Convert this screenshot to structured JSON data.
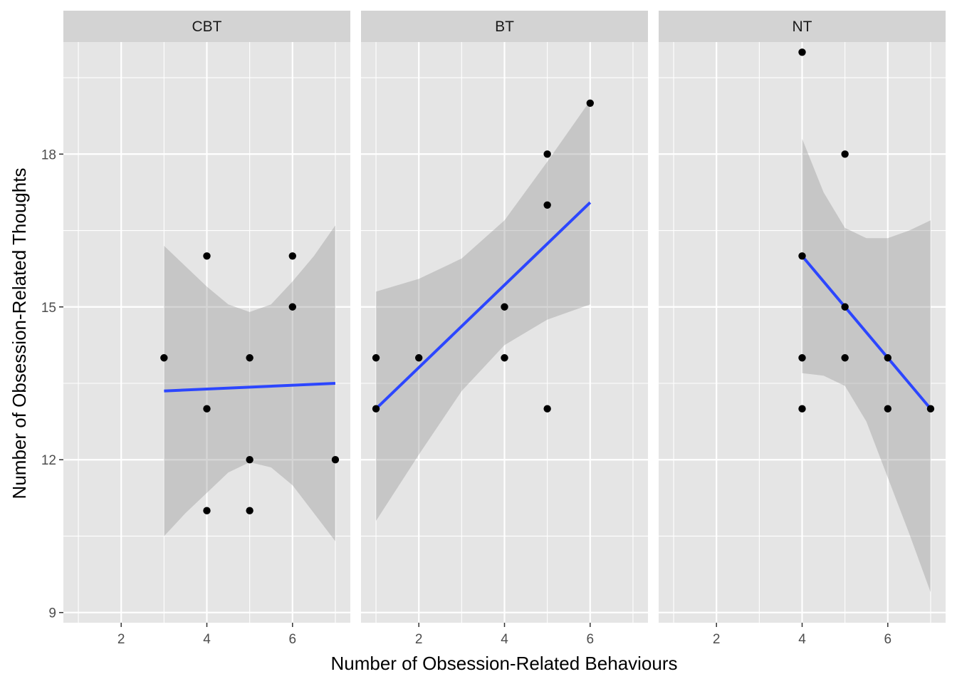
{
  "chart_data": {
    "type": "scatter",
    "xlabel": "Number of Obsession-Related Behaviours",
    "ylabel": "Number of Obsession-Related Thoughts",
    "xlim": [
      0.65,
      7.35
    ],
    "ylim": [
      8.8,
      20.2
    ],
    "x_ticks": [
      2,
      4,
      6
    ],
    "x_minor_ticks": [
      1,
      3,
      5,
      7
    ],
    "y_ticks": [
      9,
      12,
      15,
      18
    ],
    "y_minor_ticks": [
      10.5,
      13.5,
      16.5,
      19.5
    ],
    "grid": true,
    "colors": {
      "panel_bg": "#e5e5e5",
      "strip_bg": "#d3d3d3",
      "grid": "#ffffff",
      "points": "#000000",
      "fit_line": "#2c46ff",
      "ribbon": "#999999"
    },
    "panels": [
      {
        "label": "CBT",
        "points": [
          {
            "x": 3,
            "y": 14
          },
          {
            "x": 4,
            "y": 16
          },
          {
            "x": 4,
            "y": 13
          },
          {
            "x": 4,
            "y": 11
          },
          {
            "x": 5,
            "y": 14
          },
          {
            "x": 5,
            "y": 12
          },
          {
            "x": 5,
            "y": 11
          },
          {
            "x": 6,
            "y": 16
          },
          {
            "x": 6,
            "y": 15
          },
          {
            "x": 7,
            "y": 12
          }
        ],
        "fit": [
          {
            "x": 3,
            "y": 13.35
          },
          {
            "x": 7,
            "y": 13.5
          }
        ],
        "ribbon_upper": [
          {
            "x": 3,
            "y": 16.2
          },
          {
            "x": 3.5,
            "y": 15.8
          },
          {
            "x": 4,
            "y": 15.4
          },
          {
            "x": 4.5,
            "y": 15.05
          },
          {
            "x": 5,
            "y": 14.9
          },
          {
            "x": 5.5,
            "y": 15.05
          },
          {
            "x": 6,
            "y": 15.5
          },
          {
            "x": 6.5,
            "y": 16.0
          },
          {
            "x": 7,
            "y": 16.6
          }
        ],
        "ribbon_lower": [
          {
            "x": 3,
            "y": 10.5
          },
          {
            "x": 3.5,
            "y": 10.95
          },
          {
            "x": 4,
            "y": 11.35
          },
          {
            "x": 4.5,
            "y": 11.75
          },
          {
            "x": 5,
            "y": 11.95
          },
          {
            "x": 5.5,
            "y": 11.85
          },
          {
            "x": 6,
            "y": 11.5
          },
          {
            "x": 6.5,
            "y": 10.95
          },
          {
            "x": 7,
            "y": 10.4
          }
        ]
      },
      {
        "label": "BT",
        "points": [
          {
            "x": 1,
            "y": 14
          },
          {
            "x": 1,
            "y": 13
          },
          {
            "x": 2,
            "y": 14
          },
          {
            "x": 4,
            "y": 15
          },
          {
            "x": 4,
            "y": 14
          },
          {
            "x": 5,
            "y": 18
          },
          {
            "x": 5,
            "y": 17
          },
          {
            "x": 5,
            "y": 13
          },
          {
            "x": 6,
            "y": 19
          }
        ],
        "fit": [
          {
            "x": 1,
            "y": 13.0
          },
          {
            "x": 6,
            "y": 17.05
          }
        ],
        "ribbon_upper": [
          {
            "x": 1,
            "y": 15.3
          },
          {
            "x": 2,
            "y": 15.55
          },
          {
            "x": 3,
            "y": 15.95
          },
          {
            "x": 4,
            "y": 16.7
          },
          {
            "x": 5,
            "y": 17.85
          },
          {
            "x": 6,
            "y": 19.05
          }
        ],
        "ribbon_lower": [
          {
            "x": 1,
            "y": 10.8
          },
          {
            "x": 2,
            "y": 12.1
          },
          {
            "x": 3,
            "y": 13.35
          },
          {
            "x": 4,
            "y": 14.25
          },
          {
            "x": 5,
            "y": 14.75
          },
          {
            "x": 6,
            "y": 15.05
          }
        ]
      },
      {
        "label": "NT",
        "points": [
          {
            "x": 4,
            "y": 20
          },
          {
            "x": 4,
            "y": 16
          },
          {
            "x": 4,
            "y": 14
          },
          {
            "x": 4,
            "y": 13
          },
          {
            "x": 5,
            "y": 18
          },
          {
            "x": 5,
            "y": 15
          },
          {
            "x": 5,
            "y": 14
          },
          {
            "x": 6,
            "y": 14
          },
          {
            "x": 6,
            "y": 13
          },
          {
            "x": 7,
            "y": 13
          }
        ],
        "fit": [
          {
            "x": 4,
            "y": 16.0
          },
          {
            "x": 7,
            "y": 13.0
          }
        ],
        "ribbon_upper": [
          {
            "x": 4,
            "y": 18.3
          },
          {
            "x": 4.5,
            "y": 17.25
          },
          {
            "x": 5,
            "y": 16.55
          },
          {
            "x": 5.5,
            "y": 16.35
          },
          {
            "x": 6,
            "y": 16.35
          },
          {
            "x": 6.5,
            "y": 16.5
          },
          {
            "x": 7,
            "y": 16.7
          }
        ],
        "ribbon_lower": [
          {
            "x": 4,
            "y": 13.7
          },
          {
            "x": 4.5,
            "y": 13.65
          },
          {
            "x": 5,
            "y": 13.45
          },
          {
            "x": 5.5,
            "y": 12.75
          },
          {
            "x": 6,
            "y": 11.65
          },
          {
            "x": 6.5,
            "y": 10.55
          },
          {
            "x": 7,
            "y": 9.4
          }
        ]
      }
    ]
  }
}
